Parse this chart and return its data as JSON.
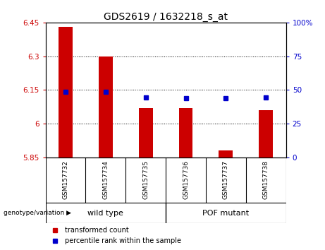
{
  "title": "GDS2619 / 1632218_s_at",
  "samples": [
    "GSM157732",
    "GSM157734",
    "GSM157735",
    "GSM157736",
    "GSM157737",
    "GSM157738"
  ],
  "bar_values": [
    6.43,
    6.3,
    6.07,
    6.07,
    5.88,
    6.06
  ],
  "blue_values": [
    6.143,
    6.142,
    6.118,
    6.113,
    6.113,
    6.118
  ],
  "baseline": 5.85,
  "ylim_left": [
    5.85,
    6.45
  ],
  "ylim_right": [
    0,
    100
  ],
  "yticks_left": [
    5.85,
    6.0,
    6.15,
    6.3,
    6.45
  ],
  "yticks_right": [
    0,
    25,
    50,
    75,
    100
  ],
  "ytick_labels_left": [
    "5.85",
    "6",
    "6.15",
    "6.3",
    "6.45"
  ],
  "ytick_labels_right": [
    "0",
    "25",
    "50",
    "75",
    "100%"
  ],
  "groups": [
    {
      "label": "wild type",
      "start": 0,
      "end": 2
    },
    {
      "label": "POF mutant",
      "start": 3,
      "end": 5
    }
  ],
  "group_label_prefix": "genotype/variation",
  "bar_color": "#CC0000",
  "blue_color": "#0000CC",
  "bar_width": 0.35,
  "bg_label_row": "#C8C8C8",
  "bg_group_row": "#66EE66",
  "legend_red_label": "transformed count",
  "legend_blue_label": "percentile rank within the sample"
}
